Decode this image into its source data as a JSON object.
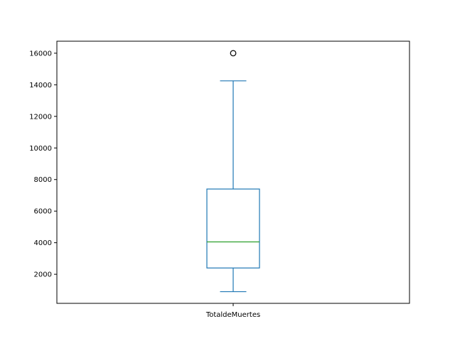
{
  "chart_data": {
    "type": "box",
    "title": "",
    "xlabel": "",
    "ylabel": "",
    "categories": [
      "TotaldeMuertes"
    ],
    "ylim": [
      160,
      16760
    ],
    "yticks": [
      2000,
      4000,
      6000,
      8000,
      10000,
      12000,
      14000,
      16000
    ],
    "ytick_labels": [
      "2000",
      "4000",
      "6000",
      "8000",
      "10000",
      "12000",
      "14000",
      "16000"
    ],
    "boxes": [
      {
        "name": "TotaldeMuertes",
        "whisker_low": 900,
        "q1": 2400,
        "median": 4050,
        "q3": 7400,
        "whisker_high": 14250,
        "outliers": [
          16000
        ]
      }
    ],
    "grid": false,
    "colors": {
      "box": "#1f77b4",
      "median": "#2ca02c",
      "axes": "#000000",
      "outlier": "#000000"
    }
  }
}
